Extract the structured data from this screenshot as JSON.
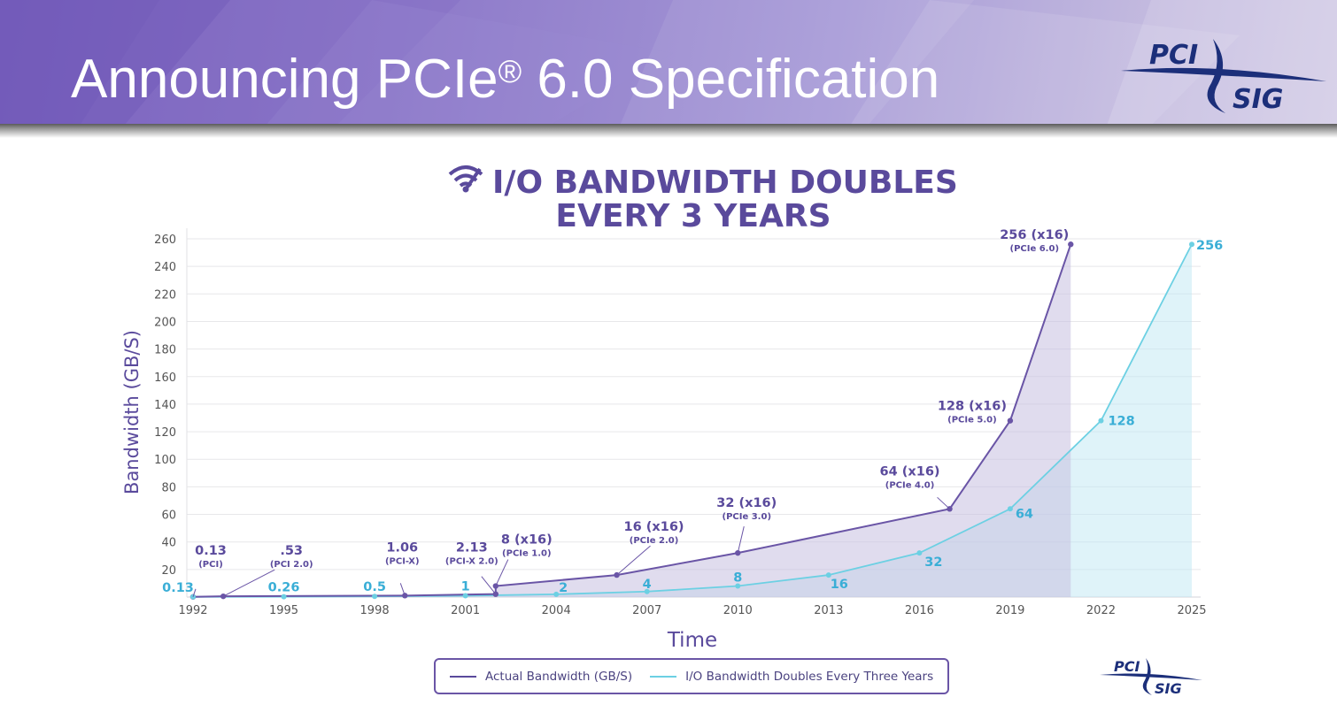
{
  "slide": {
    "title_main": "Announcing PCIe",
    "title_reg": "®",
    "title_rest": " 6.0 Specification",
    "logo_top": "PCI",
    "logo_bottom": "SIG"
  },
  "colors": {
    "actual": "#6a55a6",
    "doubling": "#6cd0e3",
    "actual_label": "#5a4a9c",
    "doubling_label": "#3aaed6",
    "axis_text": "#555555",
    "grid": "#e7e7ea"
  },
  "chart_data": {
    "type": "line",
    "title_line1": "I/O BANDWIDTH DOUBLES",
    "title_line2": "EVERY 3 YEARS",
    "xlabel": "Time",
    "ylabel": "Bandwidth (GB/S)",
    "xlim": [
      1992,
      2025
    ],
    "ylim": [
      0,
      260
    ],
    "x_ticks": [
      "1992",
      "1995",
      "1998",
      "2001",
      "2004",
      "2007",
      "2010",
      "2013",
      "2016",
      "2019",
      "2022",
      "2025"
    ],
    "y_ticks": [
      "20",
      "40",
      "60",
      "80",
      "100",
      "120",
      "140",
      "160",
      "180",
      "200",
      "220",
      "240",
      "260"
    ],
    "series": [
      {
        "name": "Actual Bandwidth (GB/S)",
        "points": [
          {
            "x": 1992,
            "y": 0.13,
            "label": "0.13",
            "sub": "(PCI)"
          },
          {
            "x": 1993,
            "y": 0.53,
            "label": ".53",
            "sub": "(PCI 2.0)"
          },
          {
            "x": 1999,
            "y": 1.06,
            "label": "1.06",
            "sub": "(PCI-X)"
          },
          {
            "x": 2002,
            "y": 2.13,
            "label": "2.13",
            "sub": "(PCI-X 2.0)"
          },
          {
            "x": 2002,
            "y": 8,
            "label": "8 (x16)",
            "sub": "(PCIe 1.0)"
          },
          {
            "x": 2006,
            "y": 16,
            "label": "16 (x16)",
            "sub": "(PCIe 2.0)"
          },
          {
            "x": 2010,
            "y": 32,
            "label": "32 (x16)",
            "sub": "(PCIe 3.0)"
          },
          {
            "x": 2017,
            "y": 64,
            "label": "64 (x16)",
            "sub": "(PCIe 4.0)"
          },
          {
            "x": 2019,
            "y": 128,
            "label": "128 (x16)",
            "sub": "(PCIe 5.0)"
          },
          {
            "x": 2021,
            "y": 256,
            "label": "256 (x16)",
            "sub": "(PCIe 6.0)"
          }
        ]
      },
      {
        "name": "I/O Bandwidth Doubles Every Three Years",
        "points": [
          {
            "x": 1992,
            "y": 0.13,
            "label": "0.13"
          },
          {
            "x": 1995,
            "y": 0.26,
            "label": "0.26"
          },
          {
            "x": 1998,
            "y": 0.5,
            "label": "0.5"
          },
          {
            "x": 2001,
            "y": 1,
            "label": "1"
          },
          {
            "x": 2004,
            "y": 2,
            "label": "2"
          },
          {
            "x": 2007,
            "y": 4,
            "label": "4"
          },
          {
            "x": 2010,
            "y": 8,
            "label": "8"
          },
          {
            "x": 2013,
            "y": 16,
            "label": "16"
          },
          {
            "x": 2016,
            "y": 32,
            "label": "32"
          },
          {
            "x": 2019,
            "y": 64,
            "label": "64"
          },
          {
            "x": 2022,
            "y": 128,
            "label": "128"
          },
          {
            "x": 2025,
            "y": 256,
            "label": "256"
          }
        ]
      }
    ]
  },
  "legend": {
    "actual": "Actual Bandwidth (GB/S)",
    "doubling": "I/O Bandwidth Doubles Every Three Years"
  }
}
